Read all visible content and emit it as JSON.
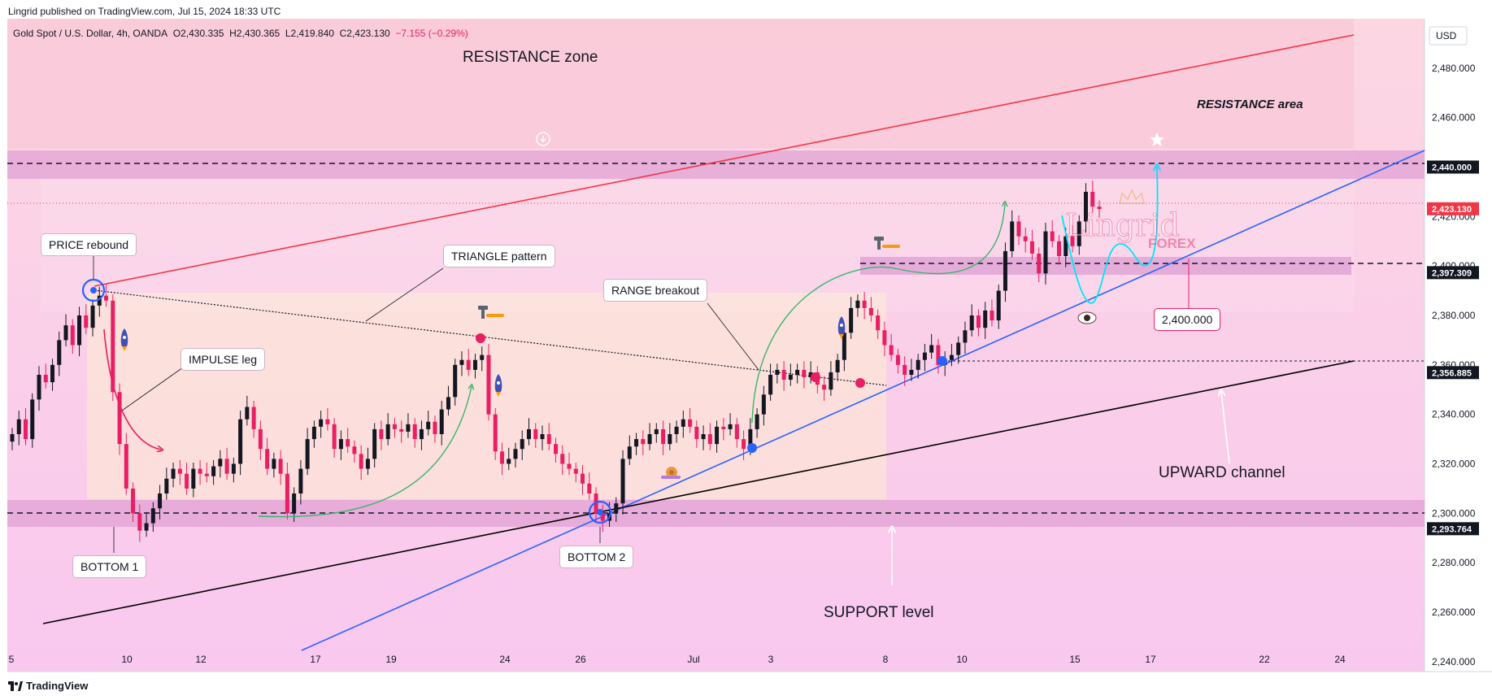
{
  "header": {
    "published": "Lingrid published on TradingView.com, Jul 15, 2024 18:33 UTC",
    "symbol": "Gold Spot / U.S. Dollar, 4h, OANDA",
    "open": "O2,430.335",
    "high": "H2,430.365",
    "low": "L2,419.840",
    "close": "C2,423.130",
    "change": "−7.155 (−0.29%)"
  },
  "footer": {
    "brand": "TradingView"
  },
  "watermark": {
    "line1": "Lingrid",
    "line2": "FOREX"
  },
  "annotations": {
    "resistance_zone": "RESISTANCE zone",
    "resistance_area": "RESISTANCE area",
    "price_rebound": "PRICE rebound",
    "triangle_pattern": "TRIANGLE pattern",
    "range_breakout": "RANGE breakout",
    "impulse_leg": "IMPULSE leg",
    "bottom1": "BOTTOM  1",
    "bottom2": "BOTTOM  2",
    "target": "2,400.000",
    "upward_channel": "UPWARD channel",
    "support_level": "SUPPORT level"
  },
  "colors": {
    "up": "#131722",
    "down": "#e91e63",
    "resistance_line": "#f23645",
    "trend_line": "#2962ff",
    "channel_line": "#000000",
    "zone_fill": "#e1a1d4",
    "projection": "#00e5ff",
    "curve_arrow": "#3ab56a"
  },
  "chart_data": {
    "type": "candlestick",
    "symbol": "Gold Spot / U.S. Dollar",
    "interval": "4h",
    "currency": "USD",
    "ylim": [
      2236,
      2500
    ],
    "y_ticks": [
      2240,
      2260,
      2280,
      2300,
      2320,
      2340,
      2360,
      2380,
      2400,
      2420,
      2440,
      2460,
      2480
    ],
    "x_tick_labels": [
      "5",
      "10",
      "12",
      "17",
      "19",
      "24",
      "26",
      "Jul",
      "3",
      "8",
      "10",
      "15",
      "17",
      "22",
      "24"
    ],
    "price_labels": [
      {
        "value": "2,440.000",
        "style": "dark"
      },
      {
        "value": "2,423.130",
        "style": "red"
      },
      {
        "value": "2,397.309",
        "style": "dark"
      },
      {
        "value": "2,356.885",
        "style": "dark"
      },
      {
        "value": "2,293.764",
        "style": "dark"
      }
    ],
    "last_close": 2423.13,
    "levels": {
      "resistance": 2440,
      "mid": 2397.309,
      "support": 2293.764,
      "breakout": 2356.885
    },
    "series": [
      {
        "name": "4h candles",
        "values": [
          2332,
          2338,
          2330,
          2346,
          2356,
          2353,
          2360,
          2370,
          2376,
          2368,
          2380,
          2375,
          2384,
          2388,
          2386,
          2349,
          2328,
          2310,
          2300,
          2293,
          2296,
          2302,
          2308,
          2314,
          2318,
          2316,
          2310,
          2318,
          2316,
          2315,
          2319,
          2322,
          2316,
          2320,
          2338,
          2343,
          2334,
          2326,
          2318,
          2322,
          2316,
          2300,
          2308,
          2318,
          2330,
          2335,
          2338,
          2336,
          2326,
          2330,
          2327,
          2324,
          2318,
          2322,
          2334,
          2330,
          2336,
          2334,
          2333,
          2336,
          2330,
          2334,
          2337,
          2332,
          2342,
          2347,
          2360,
          2362,
          2358,
          2362,
          2364,
          2340,
          2325,
          2320,
          2322,
          2326,
          2330,
          2334,
          2330,
          2332,
          2328,
          2324,
          2320,
          2318,
          2316,
          2312,
          2308,
          2300,
          2297,
          2300,
          2304,
          2322,
          2327,
          2330,
          2328,
          2332,
          2334,
          2328,
          2332,
          2335,
          2338,
          2335,
          2330,
          2332,
          2328,
          2335,
          2334,
          2336,
          2330,
          2326,
          2334,
          2340,
          2348,
          2356,
          2358,
          2354,
          2356,
          2358,
          2355,
          2357,
          2352,
          2350,
          2357,
          2362,
          2373,
          2383,
          2386,
          2383,
          2380,
          2374,
          2368,
          2364,
          2360,
          2356,
          2358,
          2362,
          2365,
          2368,
          2360,
          2362,
          2364,
          2369,
          2374,
          2380,
          2375,
          2382,
          2378,
          2390,
          2406,
          2418,
          2412,
          2410,
          2405,
          2397,
          2414,
          2410,
          2404,
          2412,
          2408,
          2418,
          2430,
          2424,
          2423
        ]
      }
    ]
  }
}
